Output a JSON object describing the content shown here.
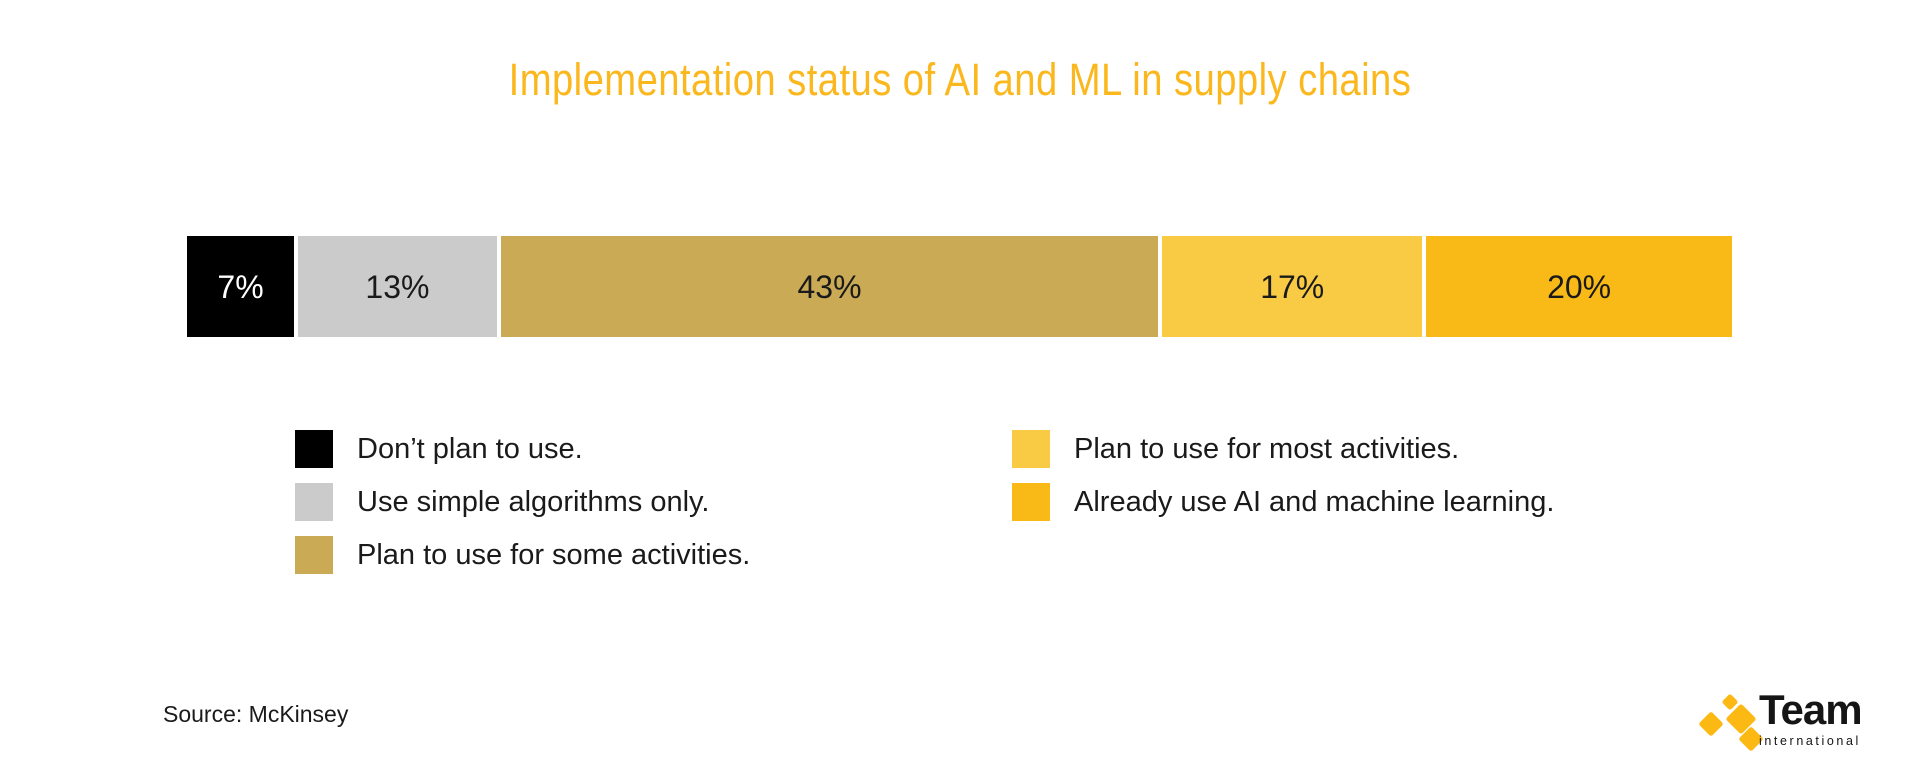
{
  "title": {
    "text": "Implementation status of AI and ML in supply chains",
    "color": "#FBB81E"
  },
  "chart_data": {
    "type": "bar",
    "subtype": "stacked-horizontal-100pct",
    "title": "Implementation status of AI and ML in supply chains",
    "unit": "%",
    "xlim": [
      0,
      100
    ],
    "grid": false,
    "legend_position": "below",
    "categories": [
      "Don’t plan to use.",
      "Use simple algorithms only.",
      "Plan to use for some activities.",
      "Plan to use for most activities.",
      "Already use AI and machine learning."
    ],
    "values": [
      7,
      13,
      43,
      17,
      20
    ],
    "labels": [
      "7%",
      "13%",
      "43%",
      "17%",
      "20%"
    ],
    "colors": [
      "#000000",
      "#CBCBCB",
      "#CBAA55",
      "#F9CB45",
      "#F9BA17"
    ],
    "label_colors": [
      "#FFFFFF",
      "#1A1A1A",
      "#1A1A1A",
      "#1A1A1A",
      "#1A1A1A"
    ]
  },
  "legend": {
    "columns": [
      {
        "items": [
          {
            "color": "#000000",
            "label": "Don’t plan to use."
          },
          {
            "color": "#CBCBCB",
            "label": "Use simple algorithms only."
          },
          {
            "color": "#CBAA55",
            "label": "Plan to use for some activities."
          }
        ]
      },
      {
        "items": [
          {
            "color": "#F9CB45",
            "label": "Plan to use for most activities."
          },
          {
            "color": "#F9BA17",
            "label": "Already use AI and machine learning."
          }
        ]
      }
    ]
  },
  "source": {
    "text": "Source: McKinsey"
  },
  "logo": {
    "name": "Team",
    "subtitle": "international",
    "mark_color": "#FDB913",
    "text_color": "#151515"
  }
}
